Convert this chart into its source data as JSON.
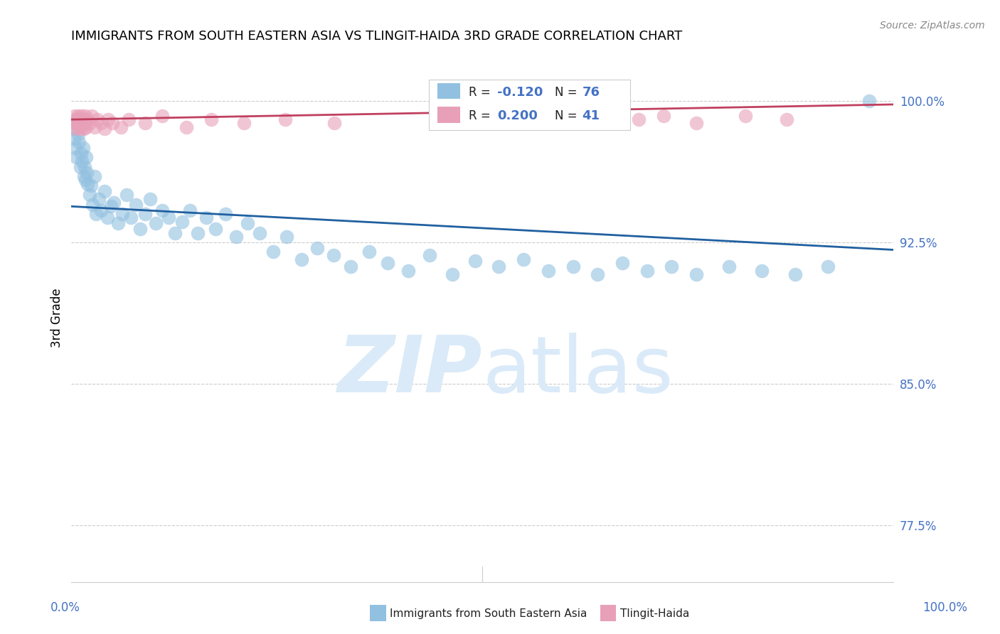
{
  "title": "IMMIGRANTS FROM SOUTH EASTERN ASIA VS TLINGIT-HAIDA 3RD GRADE CORRELATION CHART",
  "source": "Source: ZipAtlas.com",
  "ylabel": "3rd Grade",
  "yticks": [
    0.775,
    0.85,
    0.925,
    1.0
  ],
  "ytick_labels": [
    "77.5%",
    "85.0%",
    "92.5%",
    "100.0%"
  ],
  "xlim": [
    0.0,
    1.0
  ],
  "ylim": [
    0.745,
    1.025
  ],
  "legend_blue_label": "Immigrants from South Eastern Asia",
  "legend_pink_label": "Tlingit-Haida",
  "R_blue": -0.12,
  "N_blue": 76,
  "R_pink": 0.2,
  "N_pink": 41,
  "blue_color": "#92c0e0",
  "pink_color": "#e8a0b8",
  "blue_line_color": "#2060a0",
  "pink_line_color": "#c04060",
  "watermark_color": "#daeaf8",
  "blue_trend_start_y": 0.944,
  "blue_trend_end_y": 0.921,
  "pink_trend_start_y": 0.99,
  "pink_trend_end_y": 0.998,
  "blue_scatter_x": [
    0.003,
    0.004,
    0.005,
    0.006,
    0.007,
    0.008,
    0.009,
    0.01,
    0.011,
    0.012,
    0.013,
    0.014,
    0.015,
    0.016,
    0.017,
    0.018,
    0.019,
    0.02,
    0.022,
    0.024,
    0.026,
    0.028,
    0.03,
    0.033,
    0.036,
    0.04,
    0.044,
    0.048,
    0.052,
    0.057,
    0.062,
    0.067,
    0.072,
    0.078,
    0.084,
    0.09,
    0.096,
    0.103,
    0.11,
    0.118,
    0.126,
    0.135,
    0.144,
    0.154,
    0.164,
    0.175,
    0.187,
    0.2,
    0.214,
    0.229,
    0.245,
    0.262,
    0.28,
    0.299,
    0.319,
    0.34,
    0.362,
    0.385,
    0.41,
    0.436,
    0.463,
    0.491,
    0.52,
    0.55,
    0.58,
    0.61,
    0.64,
    0.67,
    0.7,
    0.73,
    0.76,
    0.8,
    0.84,
    0.88,
    0.92,
    0.97
  ],
  "blue_scatter_y": [
    0.98,
    0.985,
    0.975,
    0.97,
    0.99,
    0.982,
    0.978,
    0.988,
    0.965,
    0.972,
    0.968,
    0.975,
    0.96,
    0.965,
    0.958,
    0.97,
    0.962,
    0.956,
    0.95,
    0.955,
    0.945,
    0.96,
    0.94,
    0.948,
    0.942,
    0.952,
    0.938,
    0.944,
    0.946,
    0.935,
    0.94,
    0.95,
    0.938,
    0.945,
    0.932,
    0.94,
    0.948,
    0.935,
    0.942,
    0.938,
    0.93,
    0.936,
    0.942,
    0.93,
    0.938,
    0.932,
    0.94,
    0.928,
    0.935,
    0.93,
    0.92,
    0.928,
    0.916,
    0.922,
    0.918,
    0.912,
    0.92,
    0.914,
    0.91,
    0.918,
    0.908,
    0.915,
    0.912,
    0.916,
    0.91,
    0.912,
    0.908,
    0.914,
    0.91,
    0.912,
    0.908,
    0.912,
    0.91,
    0.908,
    0.912,
    1.0
  ],
  "pink_scatter_x": [
    0.003,
    0.004,
    0.005,
    0.006,
    0.007,
    0.008,
    0.009,
    0.01,
    0.011,
    0.012,
    0.013,
    0.014,
    0.015,
    0.016,
    0.017,
    0.018,
    0.02,
    0.022,
    0.025,
    0.028,
    0.032,
    0.036,
    0.04,
    0.045,
    0.05,
    0.06,
    0.07,
    0.09,
    0.11,
    0.14,
    0.17,
    0.21,
    0.26,
    0.32,
    0.64,
    0.66,
    0.69,
    0.72,
    0.76,
    0.82,
    0.87
  ],
  "pink_scatter_y": [
    0.988,
    0.992,
    0.985,
    0.99,
    0.988,
    0.992,
    0.986,
    0.99,
    0.988,
    0.985,
    0.992,
    0.99,
    0.985,
    0.988,
    0.992,
    0.986,
    0.99,
    0.988,
    0.992,
    0.986,
    0.99,
    0.988,
    0.985,
    0.99,
    0.988,
    0.986,
    0.99,
    0.988,
    0.992,
    0.986,
    0.99,
    0.988,
    0.99,
    0.988,
    0.992,
    0.988,
    0.99,
    0.992,
    0.988,
    0.992,
    0.99
  ]
}
